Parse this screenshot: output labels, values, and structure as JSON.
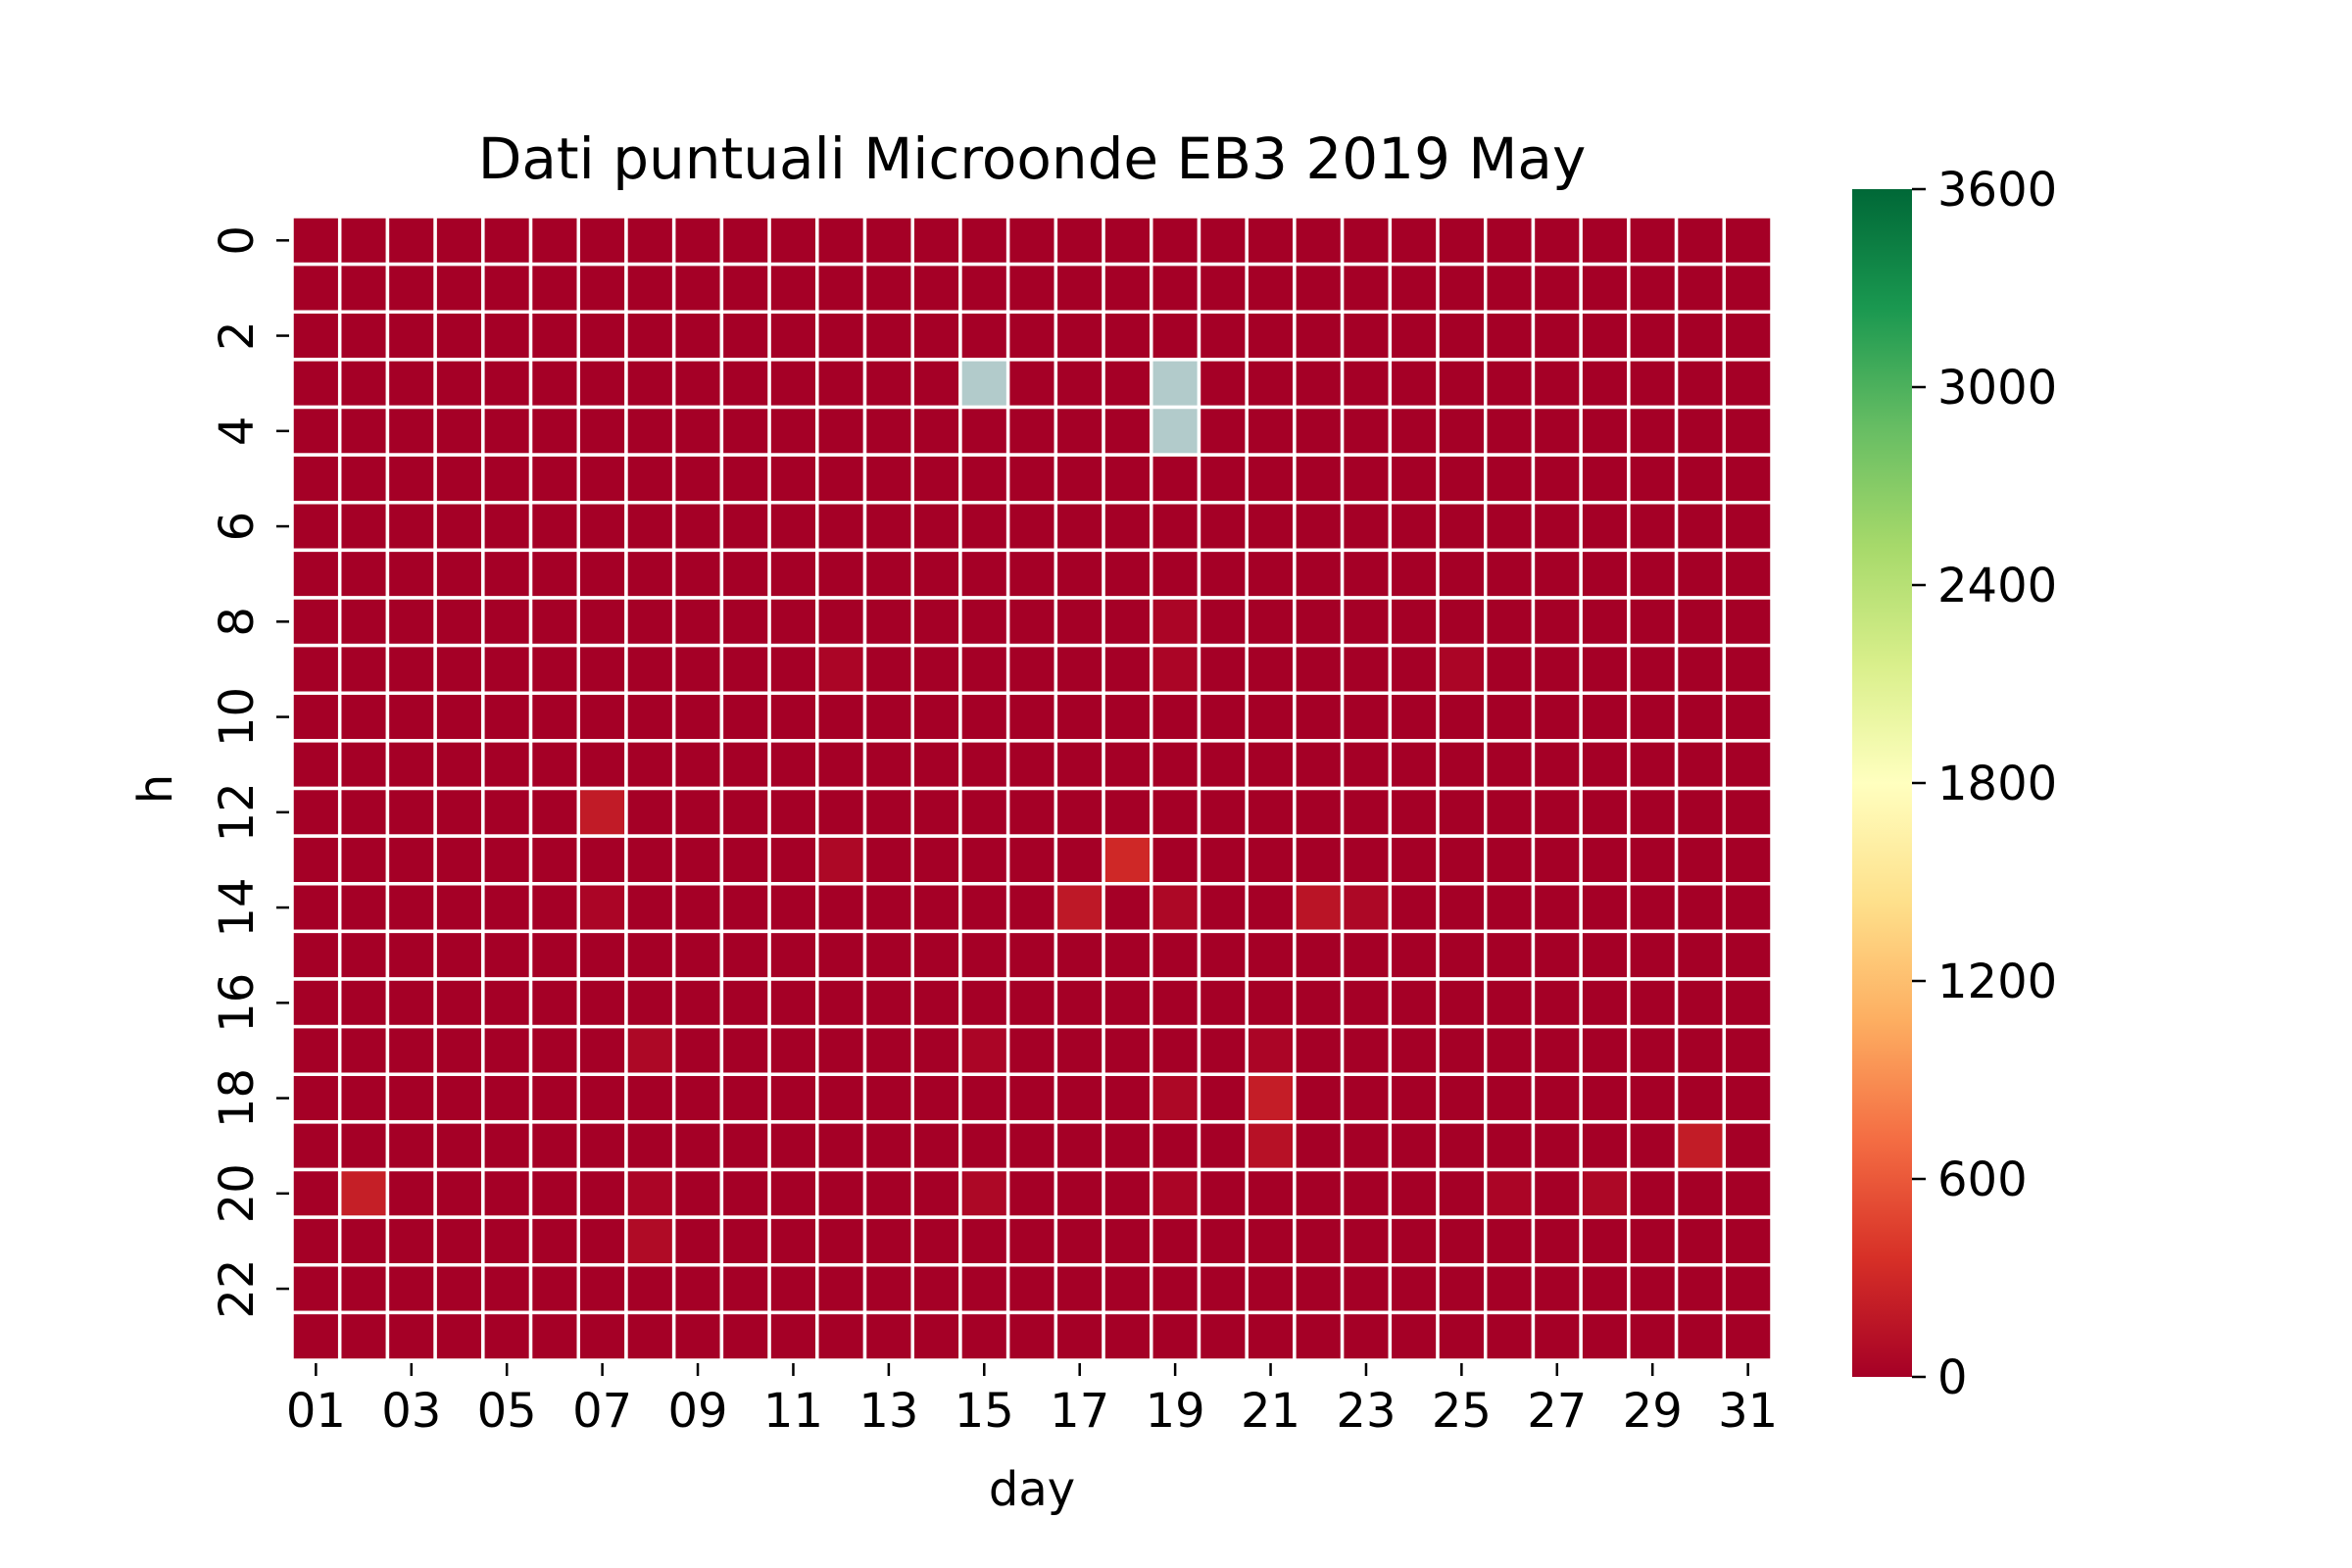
{
  "chart_data": {
    "type": "heatmap",
    "title": "Dati puntuali Microonde EB3 2019 May",
    "xlabel": "day",
    "ylabel": "h",
    "x": [
      "01",
      "02",
      "03",
      "04",
      "05",
      "06",
      "07",
      "08",
      "09",
      "10",
      "11",
      "12",
      "13",
      "14",
      "15",
      "16",
      "17",
      "18",
      "19",
      "20",
      "21",
      "22",
      "23",
      "24",
      "25",
      "26",
      "27",
      "28",
      "29",
      "30",
      "31"
    ],
    "y": [
      "0",
      "1",
      "2",
      "3",
      "4",
      "5",
      "6",
      "7",
      "8",
      "9",
      "10",
      "11",
      "12",
      "13",
      "14",
      "15",
      "16",
      "17",
      "18",
      "19",
      "20",
      "21",
      "22",
      "23"
    ],
    "x_tick_labels": [
      "01",
      "03",
      "05",
      "07",
      "09",
      "11",
      "13",
      "15",
      "17",
      "19",
      "21",
      "23",
      "25",
      "27",
      "29",
      "31"
    ],
    "y_tick_labels": [
      "0",
      "2",
      "4",
      "6",
      "8",
      "10",
      "12",
      "14",
      "16",
      "18",
      "20",
      "22"
    ],
    "colormap": "RdYlGn",
    "vmin": 0,
    "vmax": 3600,
    "colorbar_ticks": [
      0,
      600,
      1200,
      1800,
      2400,
      3000,
      3600
    ],
    "colorbar_tick_labels": [
      "0",
      "600",
      "1200",
      "1800",
      "2400",
      "3000",
      "3600"
    ],
    "missing_color": "#b2cbcb",
    "grid_line_color": "#ffffff",
    "missing_cells": [
      {
        "day": "15",
        "h": "3"
      },
      {
        "day": "19",
        "h": "3"
      },
      {
        "day": "19",
        "h": "4"
      }
    ],
    "default_value": 0,
    "nonzero_values": [
      {
        "day": "07",
        "h": "12",
        "value": 200
      },
      {
        "day": "12",
        "h": "13",
        "value": 60
      },
      {
        "day": "18",
        "h": "13",
        "value": 300
      },
      {
        "day": "07",
        "h": "14",
        "value": 40
      },
      {
        "day": "17",
        "h": "14",
        "value": 180
      },
      {
        "day": "19",
        "h": "14",
        "value": 60
      },
      {
        "day": "22",
        "h": "14",
        "value": 150
      },
      {
        "day": "23",
        "h": "14",
        "value": 60
      },
      {
        "day": "08",
        "h": "17",
        "value": 60
      },
      {
        "day": "15",
        "h": "17",
        "value": 40
      },
      {
        "day": "21",
        "h": "17",
        "value": 40
      },
      {
        "day": "19",
        "h": "18",
        "value": 60
      },
      {
        "day": "21",
        "h": "18",
        "value": 220
      },
      {
        "day": "21",
        "h": "19",
        "value": 130
      },
      {
        "day": "30",
        "h": "19",
        "value": 210
      },
      {
        "day": "02",
        "h": "20",
        "value": 230
      },
      {
        "day": "08",
        "h": "20",
        "value": 40
      },
      {
        "day": "15",
        "h": "20",
        "value": 60
      },
      {
        "day": "19",
        "h": "20",
        "value": 40
      },
      {
        "day": "26",
        "h": "20",
        "value": 40
      },
      {
        "day": "28",
        "h": "20",
        "value": 60
      },
      {
        "day": "08",
        "h": "21",
        "value": 80
      },
      {
        "day": "12",
        "h": "9",
        "value": 40
      },
      {
        "day": "19",
        "h": "8",
        "value": 40
      },
      {
        "day": "19",
        "h": "9",
        "value": 40
      },
      {
        "day": "25",
        "h": "9",
        "value": 40
      }
    ]
  }
}
